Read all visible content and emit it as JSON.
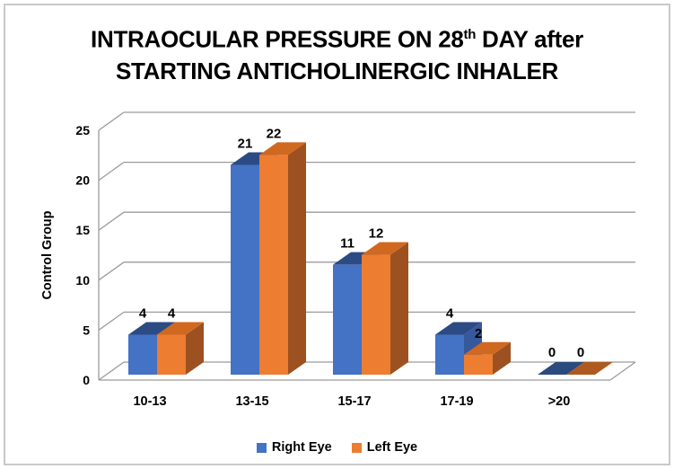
{
  "header": {
    "title_line1_pre": "INTRAOCULAR PRESSURE ON 28",
    "title_line1_sup": "th",
    "title_line1_post": " DAY after",
    "title_line2": "STARTING ANTICHOLINERGIC INHALER"
  },
  "chart_data": {
    "type": "bar",
    "style": "3d-clustered-column",
    "title": "INTRAOCULAR PRESSURE ON 28th DAY after STARTING ANTICHOLINERGIC INHALER",
    "categories": [
      "10-13",
      "13-15",
      "15-17",
      "17-19",
      ">20"
    ],
    "series": [
      {
        "name": "Right Eye",
        "color": "#4472C4",
        "values": [
          4,
          21,
          11,
          4,
          0
        ]
      },
      {
        "name": "Left Eye",
        "color": "#ED7D31",
        "values": [
          4,
          22,
          12,
          2,
          0
        ]
      }
    ],
    "xlabel": "",
    "ylabel": "Control  Group",
    "yticks": [
      0,
      5,
      10,
      15,
      20,
      25
    ],
    "ylim": [
      0,
      25
    ],
    "grid": true,
    "data_labels": true,
    "legend_position": "bottom"
  },
  "colors": {
    "right_eye": {
      "front": "#4472C4",
      "top": "#2C4B84",
      "side": "#36589C",
      "flat": "#2B4A7D"
    },
    "left_eye": {
      "front": "#ED7D31",
      "top": "#D0681F",
      "side": "#9E5120",
      "flat": "#AE5A1E"
    },
    "gridline": "#9B9B9B",
    "axis": "#9B9B9B",
    "text": "#000000",
    "border": "#C9C9C9"
  }
}
